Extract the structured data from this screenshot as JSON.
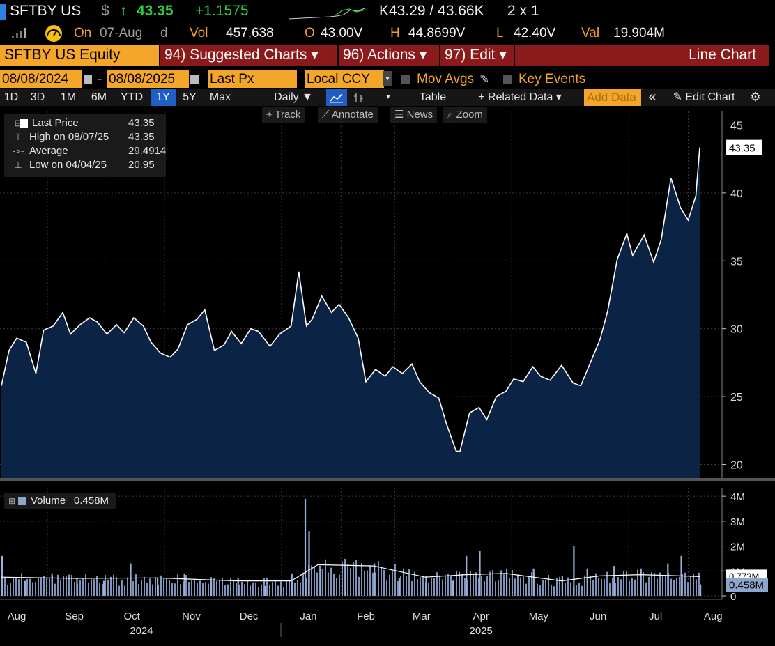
{
  "quote": {
    "ticker": "SFTBY US",
    "currency": "$",
    "arrow": "↑",
    "last": "43.35",
    "change": "+1.1575",
    "bid_ask": "K43.29 / 43.66K",
    "size": "2 x 1",
    "on_label": "On",
    "date": "07-Aug",
    "date_suffix": "d",
    "vol_label": "Vol",
    "vol": "457,638",
    "open_label": "O",
    "open": "43.00V",
    "high_label": "H",
    "high": "44.8699V",
    "low_label": "L",
    "low": "42.40V",
    "val_label": "Val",
    "val": "19.904M"
  },
  "header": {
    "security": "SFTBY US Equity",
    "suggested": "94) Suggested Charts ▾",
    "actions": "96) Actions ▾",
    "edit": "97) Edit ▾",
    "chart_type": "Line Chart"
  },
  "range": {
    "start": "08/08/2024",
    "dash": "-",
    "end": "08/08/2025",
    "field": "Last Px",
    "ccy": "Local CCY",
    "mov_avgs": "Mov Avgs",
    "key_events": "Key Events"
  },
  "toolbar": {
    "periods": [
      "1D",
      "3D",
      "1M",
      "6M",
      "YTD",
      "1Y",
      "5Y",
      "Max"
    ],
    "selected": "1Y",
    "freq": "Daily ▼",
    "table": "Table",
    "related": "+ Related Data ▾",
    "add_data": "Add Data",
    "collapse": "«",
    "edit_chart": "Edit Chart",
    "settings_icon": "gear-icon"
  },
  "tools": {
    "track": "Track",
    "annotate": "Annotate",
    "news": "News",
    "zoom": "Zoom"
  },
  "legend": {
    "last_label": "Last Price",
    "last_value": "43.35",
    "high_label": "High on 08/07/25",
    "high_value": "43.35",
    "avg_label": "Average",
    "avg_value": "29.4914",
    "low_label": "Low on 04/04/25",
    "low_value": "20.95",
    "volume_label": "Volume",
    "volume_value": "0.458M"
  },
  "colors": {
    "accent": "#f4a62a",
    "header_red": "#8b1a1a",
    "line": "#ffffff",
    "fill": "#0b2344",
    "grid": "#3a3a3a",
    "volume": "#8fa6cc"
  },
  "chart_data": {
    "type": "line",
    "price": {
      "ylim": [
        19,
        46
      ],
      "yticks": [
        "20",
        "25",
        "30",
        "35",
        "40",
        "45"
      ],
      "last_label": "43.35",
      "x": [
        "2024-08-08",
        "2024-08-12",
        "2024-08-16",
        "2024-08-21",
        "2024-08-26",
        "2024-08-30",
        "2024-09-04",
        "2024-09-09",
        "2024-09-13",
        "2024-09-18",
        "2024-09-23",
        "2024-09-27",
        "2024-10-02",
        "2024-10-07",
        "2024-10-11",
        "2024-10-16",
        "2024-10-21",
        "2024-10-25",
        "2024-10-30",
        "2024-11-04",
        "2024-11-08",
        "2024-11-13",
        "2024-11-18",
        "2024-11-22",
        "2024-11-27",
        "2024-12-02",
        "2024-12-06",
        "2024-12-11",
        "2024-12-16",
        "2024-12-20",
        "2024-12-26",
        "2024-12-31",
        "2025-01-06",
        "2025-01-10",
        "2025-01-14",
        "2025-01-17",
        "2025-01-22",
        "2025-01-27",
        "2025-01-31",
        "2025-02-05",
        "2025-02-10",
        "2025-02-14",
        "2025-02-19",
        "2025-02-24",
        "2025-02-28",
        "2025-03-05",
        "2025-03-10",
        "2025-03-14",
        "2025-03-19",
        "2025-03-24",
        "2025-03-28",
        "2025-04-02",
        "2025-04-04",
        "2025-04-09",
        "2025-04-14",
        "2025-04-18",
        "2025-04-23",
        "2025-04-28",
        "2025-05-02",
        "2025-05-07",
        "2025-05-12",
        "2025-05-16",
        "2025-05-21",
        "2025-05-27",
        "2025-06-02",
        "2025-06-06",
        "2025-06-11",
        "2025-06-16",
        "2025-06-20",
        "2025-06-25",
        "2025-06-30",
        "2025-07-03",
        "2025-07-09",
        "2025-07-14",
        "2025-07-18",
        "2025-07-23",
        "2025-07-28",
        "2025-08-01",
        "2025-08-05",
        "2025-08-07"
      ],
      "y": [
        25.8,
        28.4,
        29.3,
        29.0,
        26.7,
        29.9,
        30.2,
        31.2,
        29.6,
        30.3,
        30.8,
        30.5,
        29.6,
        30.3,
        29.7,
        30.8,
        30.2,
        29.0,
        28.2,
        27.9,
        28.5,
        30.3,
        30.7,
        31.4,
        28.4,
        28.8,
        29.8,
        28.9,
        30.0,
        29.8,
        28.7,
        29.6,
        30.2,
        34.2,
        30.2,
        30.7,
        32.4,
        31.2,
        31.8,
        30.8,
        29.3,
        26.1,
        27.0,
        26.5,
        27.2,
        26.7,
        27.4,
        26.1,
        25.3,
        24.9,
        23.0,
        21.0,
        20.95,
        23.8,
        24.2,
        23.3,
        25.0,
        25.4,
        26.3,
        26.1,
        27.2,
        26.5,
        26.2,
        27.3,
        26.0,
        25.8,
        27.5,
        29.2,
        31.3,
        35.1,
        37.0,
        35.4,
        36.9,
        34.9,
        36.6,
        41.1,
        38.9,
        38.0,
        39.8,
        43.35
      ]
    },
    "volume": {
      "ylim": [
        0,
        4.2
      ],
      "unit": "M",
      "yticks": [
        "0",
        "1M",
        "2M",
        "3M",
        "4M"
      ],
      "last_label": "0.458M",
      "avg_label": "0.773M",
      "x": [
        "2024-08-08",
        "2024-08-20",
        "2024-09-03",
        "2024-09-16",
        "2024-09-30",
        "2024-10-14",
        "2024-10-28",
        "2024-11-11",
        "2024-11-25",
        "2024-12-09",
        "2024-12-23",
        "2025-01-06",
        "2025-01-13",
        "2025-01-15",
        "2025-01-21",
        "2025-02-03",
        "2025-02-18",
        "2025-03-03",
        "2025-03-17",
        "2025-03-31",
        "2025-04-07",
        "2025-04-14",
        "2025-04-28",
        "2025-05-12",
        "2025-05-27",
        "2025-06-02",
        "2025-06-09",
        "2025-06-23",
        "2025-07-07",
        "2025-07-21",
        "2025-07-28",
        "2025-08-07"
      ],
      "values": [
        1.6,
        0.6,
        0.9,
        0.7,
        0.6,
        1.3,
        0.7,
        0.9,
        0.6,
        0.7,
        0.4,
        0.9,
        3.9,
        2.6,
        1.1,
        1.2,
        1.3,
        0.7,
        0.8,
        0.6,
        1.6,
        1.8,
        0.9,
        1.1,
        0.8,
        2.0,
        1.1,
        1.2,
        1.1,
        1.3,
        1.6,
        0.458
      ],
      "avg_x": [
        "2024-08-08",
        "2024-09-16",
        "2024-10-28",
        "2024-12-09",
        "2025-01-06",
        "2025-01-20",
        "2025-02-18",
        "2025-03-17",
        "2025-04-07",
        "2025-04-28",
        "2025-05-27",
        "2025-06-16",
        "2025-07-07",
        "2025-07-28",
        "2025-08-07"
      ],
      "avg_values": [
        0.75,
        0.7,
        0.72,
        0.6,
        0.6,
        1.25,
        1.2,
        0.75,
        0.85,
        0.9,
        0.6,
        0.8,
        0.85,
        0.8,
        0.773
      ]
    },
    "x_months": [
      "Aug",
      "Sep",
      "Oct",
      "Nov",
      "Dec",
      "Jan",
      "Feb",
      "Mar",
      "Apr",
      "May",
      "Jun",
      "Jul",
      "Aug"
    ],
    "x_years": [
      "2024",
      "2025"
    ]
  }
}
